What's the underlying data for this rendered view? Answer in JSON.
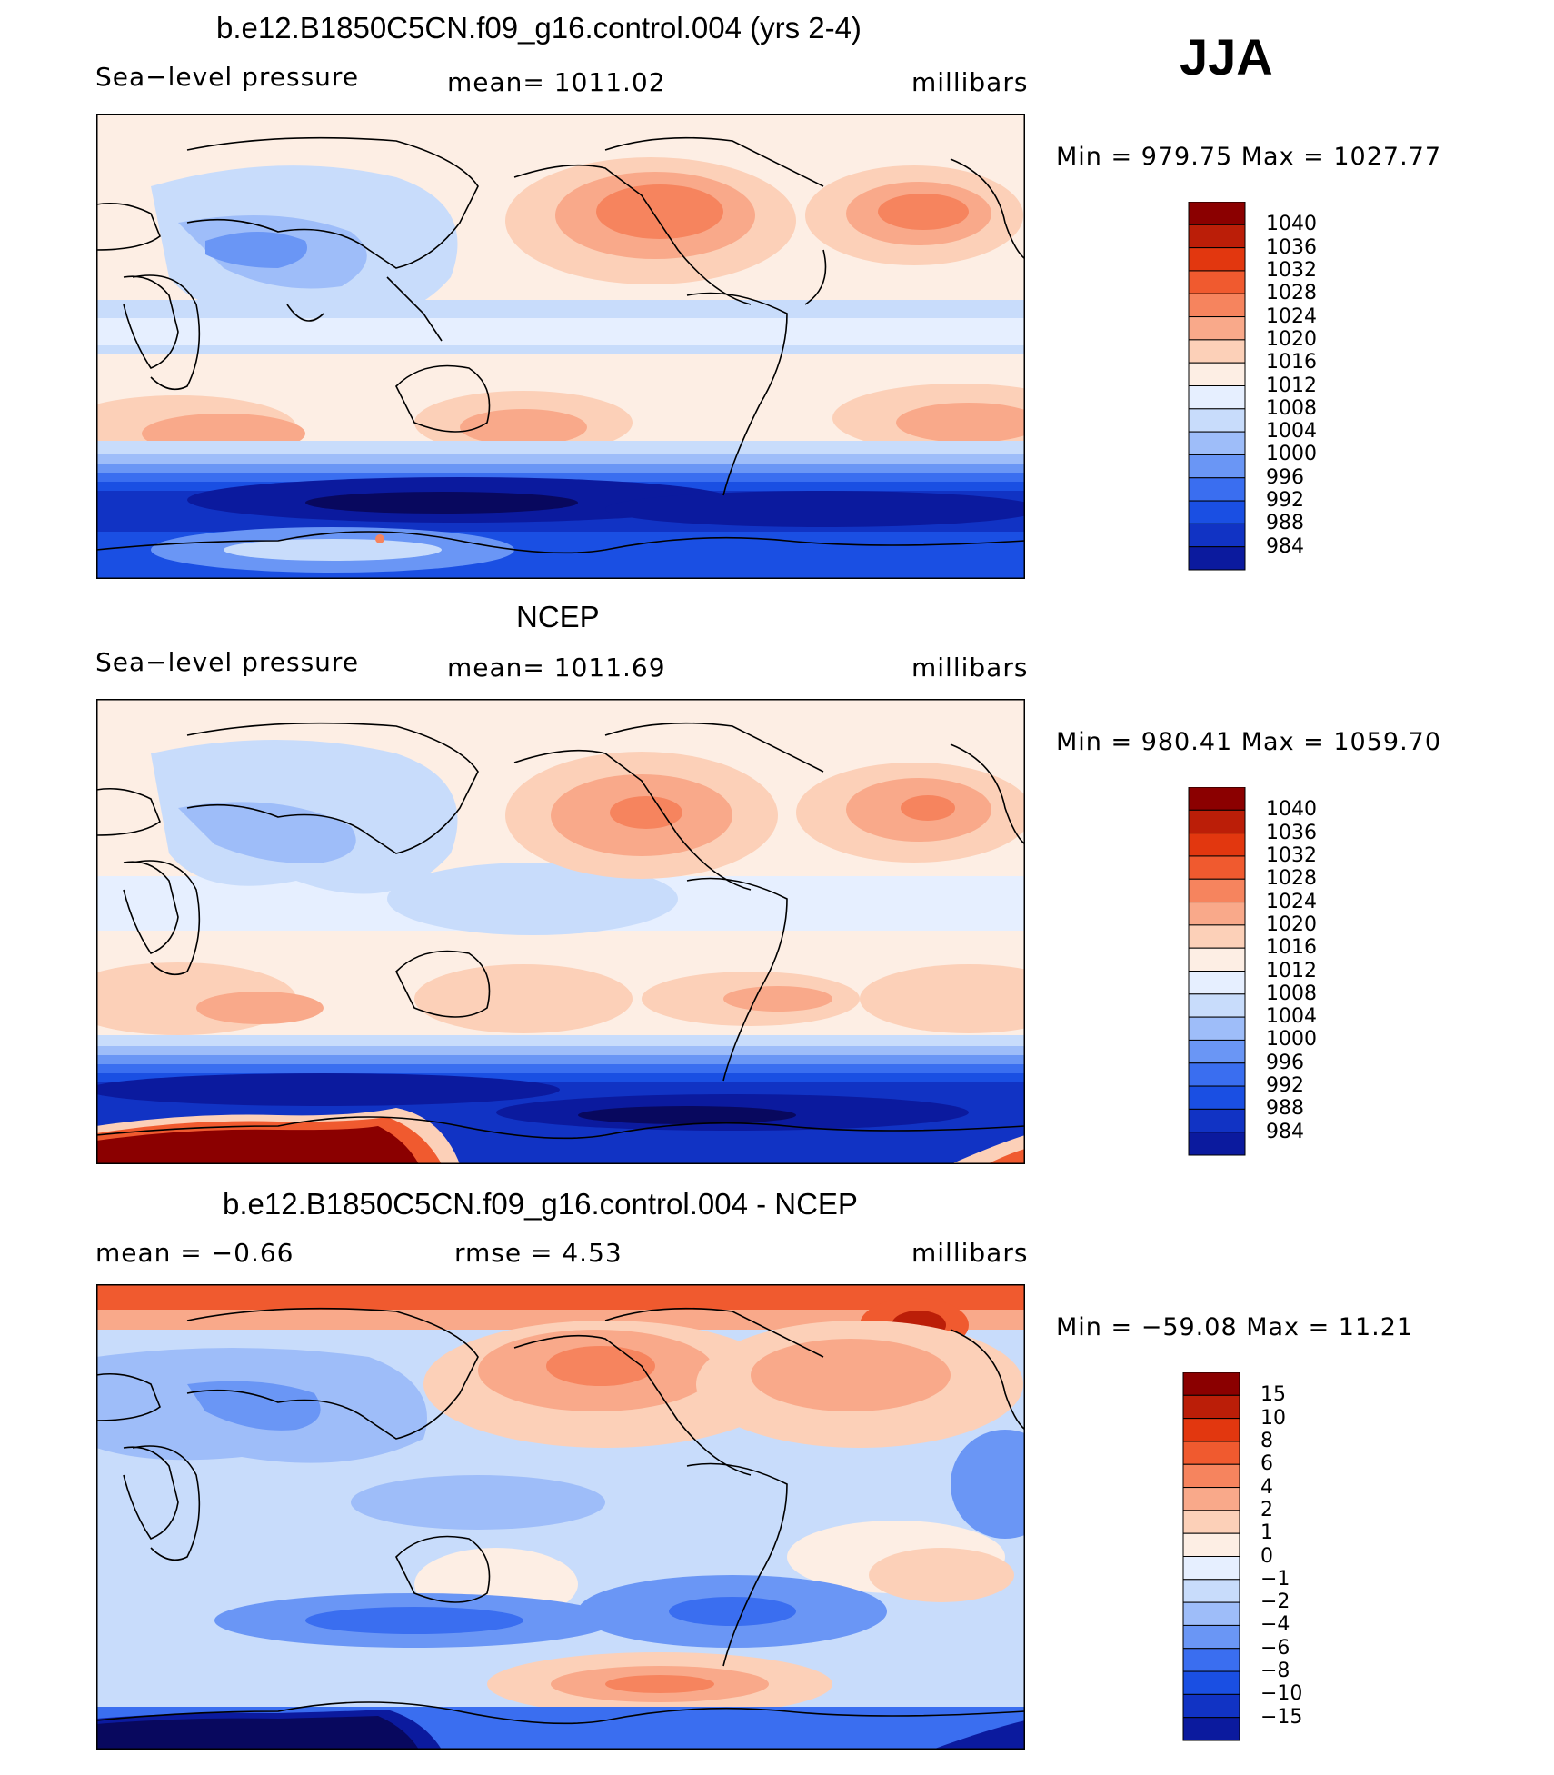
{
  "season": "JJA",
  "colors_sl": [
    "#08085e",
    "#0b1a9e",
    "#1133c4",
    "#1a4fe3",
    "#3a6ef0",
    "#6a96f5",
    "#9ebdf9",
    "#c8dcfb",
    "#e6efff",
    "#fdeee4",
    "#fcd0b8",
    "#f9a98a",
    "#f6845e",
    "#f05a2f",
    "#e2370f",
    "#bb1e08",
    "#8b0000"
  ],
  "colors_diff": [
    "#08085e",
    "#0b1a9e",
    "#1133c4",
    "#1a4fe3",
    "#3a6ef0",
    "#6a96f5",
    "#9ebdf9",
    "#c8dcfb",
    "#e6efff",
    "#fdeee4",
    "#fcd0b8",
    "#f9a98a",
    "#f6845e",
    "#f05a2f",
    "#e2370f",
    "#bb1e08",
    "#8b0000"
  ],
  "panels": [
    {
      "title": "b.e12.B1850C5CN.f09_g16.control.004 (yrs 2-4)",
      "left": "Sea−level pressure",
      "center": "mean=  1011.02",
      "units": "millibars",
      "minmax": "Min  =  979.75  Max  =  1027.77",
      "cb_labels": [
        "1040",
        "1036",
        "1032",
        "1028",
        "1024",
        "1020",
        "1016",
        "1012",
        "1008",
        "1004",
        "1000",
        "996",
        "992",
        "988",
        "984"
      ]
    },
    {
      "title": "NCEP",
      "left": "Sea−level pressure",
      "center": "mean=  1011.69",
      "units": "millibars",
      "minmax": "Min  =  980.41  Max  =  1059.70",
      "cb_labels": [
        "1040",
        "1036",
        "1032",
        "1028",
        "1024",
        "1020",
        "1016",
        "1012",
        "1008",
        "1004",
        "1000",
        "996",
        "992",
        "988",
        "984"
      ]
    },
    {
      "title": "b.e12.B1850C5CN.f09_g16.control.004 - NCEP",
      "left": "mean  =    −0.66",
      "center": "rmse  =     4.53",
      "units": "millibars",
      "minmax": "Min  =  −59.08  Max  =    11.21",
      "cb_labels": [
        "15",
        "10",
        "8",
        "6",
        "4",
        "2",
        "1",
        "0",
        "−1",
        "−2",
        "−4",
        "−6",
        "−8",
        "−10",
        "−15"
      ]
    }
  ]
}
